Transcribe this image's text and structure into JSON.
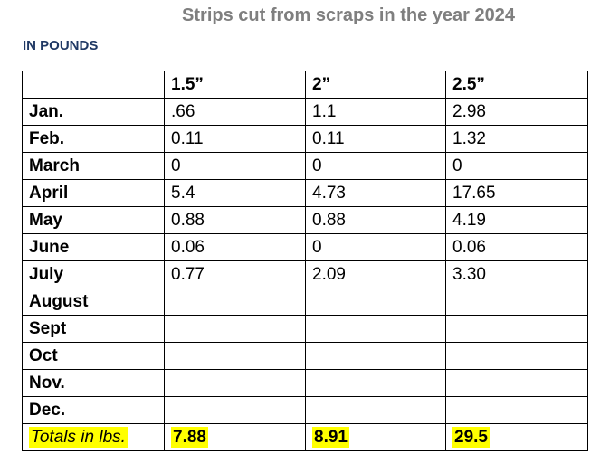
{
  "title": "Strips cut from scraps in the year 2024",
  "subtitle": "IN POUNDS",
  "highlight_color": "#ffff00",
  "table": {
    "columns": [
      "",
      "1.5”",
      "2”",
      "2.5”"
    ],
    "rows": [
      {
        "label": "Jan.",
        "values": [
          ".66",
          "1.1",
          "2.98"
        ]
      },
      {
        "label": "Feb.",
        "values": [
          "0.11",
          "0.11",
          "1.32"
        ]
      },
      {
        "label": "March",
        "values": [
          "0",
          "0",
          "0"
        ]
      },
      {
        "label": "April",
        "values": [
          "5.4",
          "4.73",
          "17.65"
        ]
      },
      {
        "label": "May",
        "values": [
          "0.88",
          "0.88",
          "4.19"
        ]
      },
      {
        "label": "June",
        "values": [
          "0.06",
          "0",
          "0.06"
        ]
      },
      {
        "label": "July",
        "values": [
          "0.77",
          "2.09",
          "3.30"
        ]
      },
      {
        "label": "August",
        "values": [
          "",
          "",
          ""
        ]
      },
      {
        "label": "Sept",
        "values": [
          "",
          "",
          ""
        ]
      },
      {
        "label": "Oct",
        "values": [
          "",
          "",
          ""
        ]
      },
      {
        "label": "Nov.",
        "values": [
          "",
          "",
          ""
        ]
      },
      {
        "label": "Dec.",
        "values": [
          "",
          "",
          ""
        ]
      }
    ],
    "totals": {
      "label": "Totals in lbs.",
      "values": [
        "7.88",
        "8.91",
        "29.5"
      ]
    }
  }
}
